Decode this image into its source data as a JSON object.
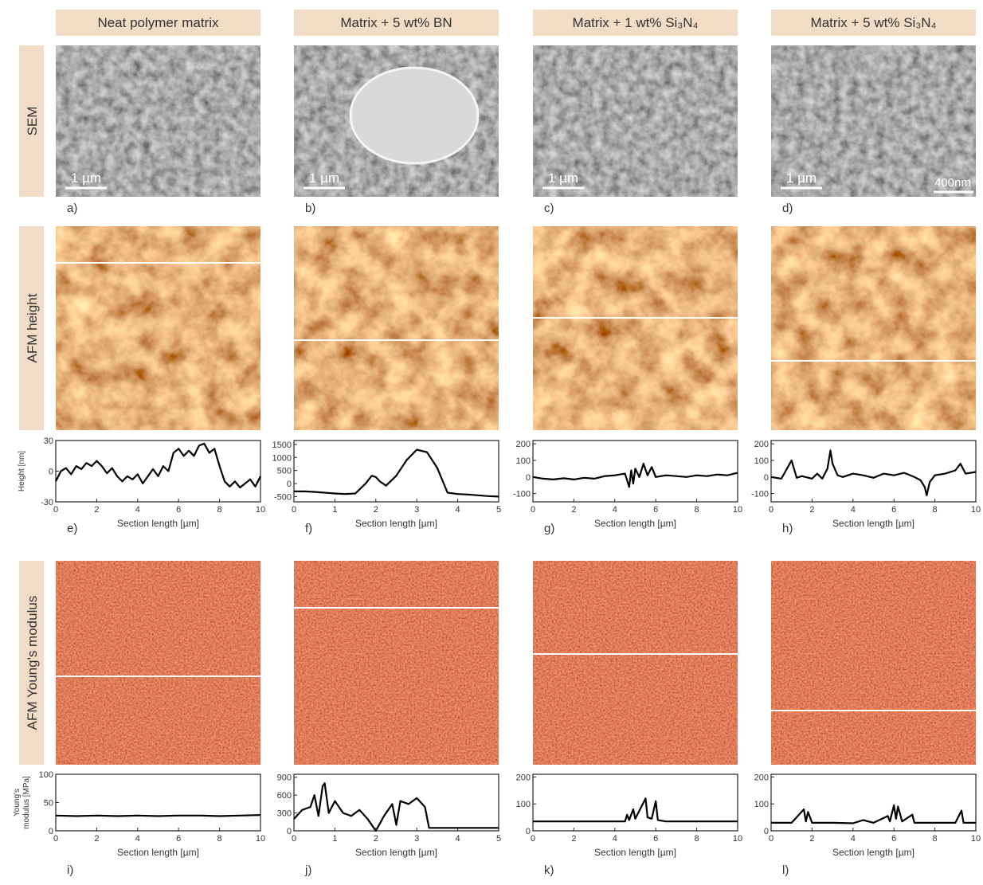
{
  "columns": [
    "Neat polymer matrix",
    "Matrix + 5 wt% BN",
    "Matrix + 1 wt% Si₃N₄",
    "Matrix + 5 wt% Si₃N₄"
  ],
  "rows": [
    "SEM",
    "AFM height",
    "AFM Young's modulus"
  ],
  "scale_bars": [
    "1 µm",
    "1 µm",
    "1 µm",
    "1 µm"
  ],
  "inset_scale_bar": "400nm",
  "panel_labels": [
    "a)",
    "b)",
    "c)",
    "d)",
    "e)",
    "f)",
    "g)",
    "h)",
    "i)",
    "j)",
    "k)",
    "l)"
  ],
  "chart_data": [
    {
      "type": "line",
      "xlabel": "Section length [µm]",
      "ylabel": [
        "Height [nm]"
      ],
      "color": "#000000",
      "xlim": [
        0,
        10
      ],
      "xticks": [
        0,
        2,
        4,
        6,
        8,
        10
      ],
      "ylim": [
        -30,
        30
      ],
      "yticks": [
        -30,
        0,
        30
      ],
      "x": [
        0,
        0.25,
        0.5,
        0.75,
        1,
        1.25,
        1.5,
        1.75,
        2,
        2.25,
        2.5,
        2.75,
        3,
        3.25,
        3.5,
        3.75,
        4,
        4.25,
        4.5,
        4.75,
        5,
        5.25,
        5.5,
        5.75,
        6,
        6.25,
        6.5,
        6.75,
        7,
        7.25,
        7.5,
        7.75,
        8,
        8.25,
        8.5,
        8.75,
        9,
        9.25,
        9.5,
        9.75,
        10
      ],
      "values": [
        -10,
        0,
        3,
        -3,
        5,
        2,
        8,
        5,
        10,
        5,
        -2,
        3,
        -5,
        -10,
        -5,
        -8,
        -3,
        -12,
        -5,
        2,
        -5,
        5,
        0,
        18,
        22,
        15,
        20,
        15,
        25,
        27,
        18,
        22,
        5,
        -10,
        -15,
        -10,
        -16,
        -12,
        -8,
        -15,
        -5
      ]
    },
    {
      "type": "line",
      "xlabel": "Section length [µm]",
      "ylabel": [],
      "color": "#000000",
      "xlim": [
        0,
        5
      ],
      "xticks": [
        0,
        1,
        2,
        3,
        4,
        5
      ],
      "ylim": [
        -700,
        1650
      ],
      "yticks": [
        -500,
        0,
        500,
        1000,
        1500
      ],
      "x": [
        0,
        0.25,
        0.5,
        0.75,
        1,
        1.25,
        1.5,
        1.75,
        1.9,
        2,
        2.1,
        2.25,
        2.5,
        2.75,
        3,
        3.25,
        3.5,
        3.75,
        4,
        4.25,
        4.5,
        4.75,
        5
      ],
      "values": [
        -300,
        -300,
        -320,
        -350,
        -380,
        -400,
        -380,
        0,
        300,
        250,
        80,
        -80,
        300,
        900,
        1300,
        1200,
        600,
        -350,
        -400,
        -420,
        -450,
        -480,
        -500
      ]
    },
    {
      "type": "line",
      "xlabel": "Section length [µm]",
      "ylabel": [],
      "color": "#000000",
      "xlim": [
        0,
        10
      ],
      "xticks": [
        0,
        2,
        4,
        6,
        8,
        10
      ],
      "ylim": [
        -150,
        220
      ],
      "yticks": [
        -100,
        0,
        100,
        200
      ],
      "x": [
        0,
        0.5,
        1,
        1.5,
        2,
        2.5,
        3,
        3.5,
        4,
        4.5,
        4.7,
        4.8,
        4.9,
        5,
        5.2,
        5.4,
        5.6,
        5.8,
        6,
        6.5,
        7,
        7.5,
        8,
        8.5,
        9,
        9.5,
        10
      ],
      "values": [
        0,
        -10,
        -15,
        -8,
        -15,
        -5,
        -10,
        5,
        10,
        20,
        -60,
        40,
        -40,
        50,
        0,
        80,
        10,
        60,
        0,
        10,
        5,
        0,
        10,
        5,
        15,
        10,
        25
      ]
    },
    {
      "type": "line",
      "xlabel": "Section length [µm]",
      "ylabel": [],
      "color": "#000000",
      "xlim": [
        0,
        10
      ],
      "xticks": [
        0,
        2,
        4,
        6,
        8,
        10
      ],
      "ylim": [
        -150,
        220
      ],
      "yticks": [
        -100,
        0,
        100,
        200
      ],
      "x": [
        0,
        0.5,
        1,
        1.25,
        1.5,
        2,
        2.25,
        2.5,
        2.75,
        2.9,
        3,
        3.25,
        3.5,
        4,
        4.5,
        5,
        5.5,
        6,
        6.5,
        7,
        7.3,
        7.5,
        7.6,
        7.75,
        8,
        8.5,
        9,
        9.25,
        9.5,
        10
      ],
      "values": [
        0,
        -10,
        100,
        -5,
        5,
        -10,
        20,
        -10,
        50,
        160,
        80,
        10,
        0,
        20,
        10,
        -5,
        20,
        10,
        25,
        0,
        -20,
        -60,
        -110,
        -30,
        10,
        20,
        40,
        80,
        20,
        30
      ]
    },
    {
      "type": "line",
      "xlabel": "Section length [µm]",
      "ylabel": [
        "Young's",
        "modulus [MPa]"
      ],
      "color": "#000000",
      "xlim": [
        0,
        10
      ],
      "xticks": [
        0,
        2,
        4,
        6,
        8,
        10
      ],
      "ylim": [
        0,
        100
      ],
      "yticks": [
        0,
        50,
        100
      ],
      "x": [
        0,
        1,
        2,
        3,
        4,
        5,
        6,
        7,
        8,
        9,
        10
      ],
      "values": [
        27,
        26,
        27,
        26,
        27,
        26,
        27,
        27,
        26,
        27,
        28
      ]
    },
    {
      "type": "line",
      "xlabel": "Section length [µm]",
      "ylabel": [],
      "color": "#000000",
      "xlim": [
        0,
        5
      ],
      "xticks": [
        0,
        1,
        2,
        3,
        4,
        5
      ],
      "ylim": [
        0,
        950
      ],
      "yticks": [
        0,
        300,
        600,
        900
      ],
      "x": [
        0,
        0.2,
        0.4,
        0.5,
        0.6,
        0.7,
        0.75,
        0.85,
        1,
        1.2,
        1.4,
        1.6,
        1.8,
        2,
        2.2,
        2.4,
        2.5,
        2.6,
        2.8,
        3,
        3.2,
        3.3,
        3.5,
        4,
        5
      ],
      "values": [
        200,
        350,
        400,
        600,
        250,
        750,
        800,
        300,
        500,
        300,
        250,
        350,
        200,
        0,
        250,
        450,
        100,
        500,
        450,
        550,
        400,
        50,
        50,
        50,
        50
      ]
    },
    {
      "type": "line",
      "xlabel": "Section length [µm]",
      "ylabel": [],
      "color": "#000000",
      "xlim": [
        0,
        10
      ],
      "xticks": [
        0,
        2,
        4,
        6,
        8,
        10
      ],
      "ylim": [
        0,
        210
      ],
      "yticks": [
        0,
        100,
        200
      ],
      "x": [
        0,
        1,
        2,
        3,
        4,
        4.5,
        4.6,
        4.7,
        4.9,
        5,
        5.3,
        5.5,
        5.6,
        5.8,
        6,
        6.1,
        6.5,
        7,
        8,
        9,
        10
      ],
      "values": [
        35,
        35,
        35,
        35,
        35,
        35,
        60,
        40,
        80,
        45,
        90,
        120,
        50,
        45,
        110,
        40,
        35,
        35,
        35,
        35,
        35
      ]
    },
    {
      "type": "line",
      "xlabel": "Section length [µm]",
      "ylabel": [],
      "color": "#000000",
      "xlim": [
        0,
        10
      ],
      "xticks": [
        0,
        2,
        4,
        6,
        8,
        10
      ],
      "ylim": [
        0,
        210
      ],
      "yticks": [
        0,
        100,
        200
      ],
      "x": [
        0,
        1,
        1.6,
        1.7,
        1.8,
        2,
        3,
        4,
        4.5,
        5,
        5.7,
        5.8,
        6,
        6.1,
        6.2,
        6.4,
        6.9,
        7,
        8,
        9,
        9.3,
        9.4,
        10
      ],
      "values": [
        30,
        30,
        80,
        35,
        70,
        30,
        30,
        28,
        40,
        30,
        55,
        35,
        95,
        45,
        90,
        35,
        60,
        30,
        30,
        30,
        75,
        30,
        30
      ]
    }
  ]
}
